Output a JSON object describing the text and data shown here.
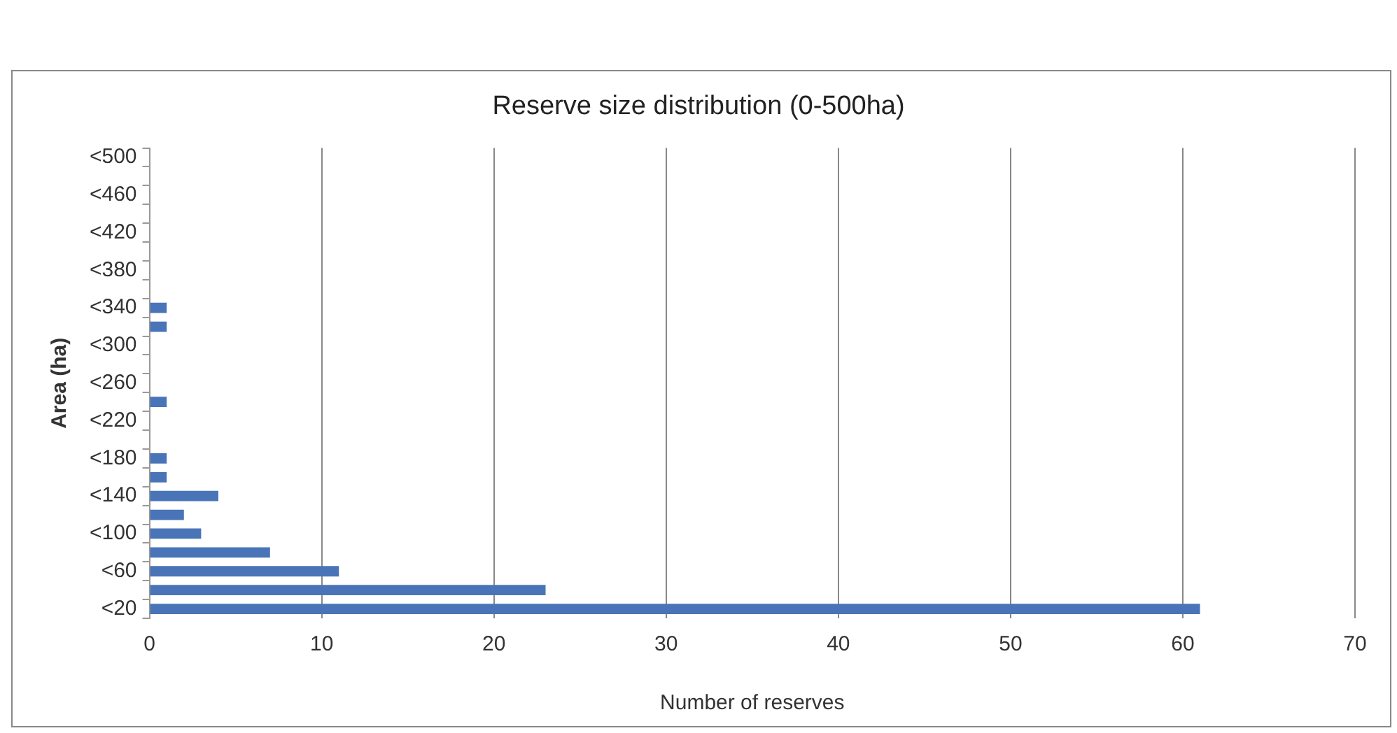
{
  "chart_data": {
    "type": "bar",
    "orientation": "horizontal",
    "title": "Reserve size distribution (0-500ha)",
    "xlabel": "Number of reserves",
    "ylabel": "Area (ha)",
    "categories": [
      "<500",
      null,
      "<460",
      null,
      "<420",
      null,
      "<380",
      null,
      "<340",
      null,
      "<300",
      null,
      "<260",
      null,
      "<220",
      null,
      "<180",
      null,
      "<140",
      null,
      "<100",
      null,
      "<60",
      null,
      "<20"
    ],
    "values": [
      0,
      0,
      0,
      0,
      0,
      0,
      0,
      0,
      1,
      1,
      0,
      0,
      0,
      1,
      0,
      0,
      1,
      1,
      4,
      2,
      3,
      7,
      11,
      23,
      61
    ],
    "color": "#4a74b8",
    "xlim": [
      0,
      70
    ],
    "xticks": [
      0,
      10,
      20,
      30,
      40,
      50,
      60,
      70
    ],
    "grid": "x",
    "legend": false
  }
}
